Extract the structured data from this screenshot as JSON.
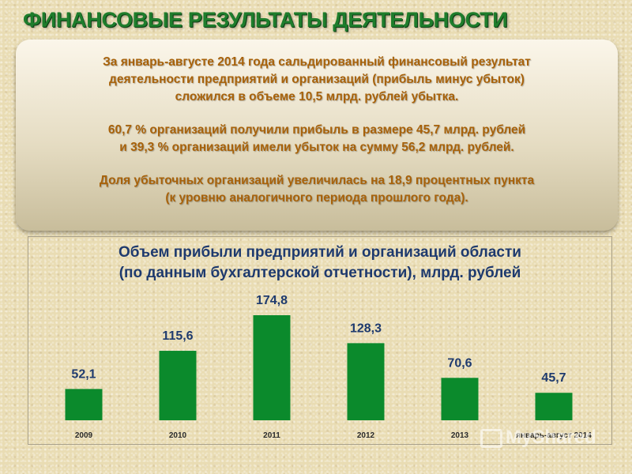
{
  "page": {
    "title": "ФИНАНСОВЫЕ РЕЗУЛЬТАТЫ ДЕЯТЕЛЬНОСТИ"
  },
  "summary": {
    "paragraph1": [
      "За январь-августе 2014 года сальдированный финансовый результат",
      "деятельности предприятий и организаций (прибыль минус убыток)",
      "сложился в объеме 10,5 млрд. рублей убытка."
    ],
    "paragraph2": [
      "60,7 % организаций получили прибыль в размере 45,7 млрд. рублей",
      "и 39,3 % организаций имели убыток на сумму 56,2 млрд. рублей."
    ],
    "paragraph3": [
      "Доля убыточных организаций увеличилась на 18,9 процентных пункта",
      "(к уровню аналогичного периода прошлого года)."
    ]
  },
  "watermark": "MyShared",
  "colors": {
    "title": "#1e7d2c",
    "summary_text": "#a8620a",
    "bar": "#0b8a2c",
    "chart_title": "#1e3a6e",
    "value_label": "#1e3a6e"
  },
  "chart_data": {
    "type": "bar",
    "title": [
      "Объем прибыли предприятий и организаций области",
      "(по данным бухгалтерской отчетности), млрд. рублей"
    ],
    "categories": [
      "2009",
      "2010",
      "2011",
      "2012",
      "2013",
      "январь-август 2014"
    ],
    "values": [
      52.1,
      115.6,
      174.8,
      128.3,
      70.6,
      45.7
    ],
    "value_labels": [
      "52,1",
      "115,6",
      "174,8",
      "128,3",
      "70,6",
      "45,7"
    ],
    "xlabel": "",
    "ylabel": "",
    "ylim": [
      0,
      174.8
    ],
    "grid": false,
    "legend": "none"
  }
}
